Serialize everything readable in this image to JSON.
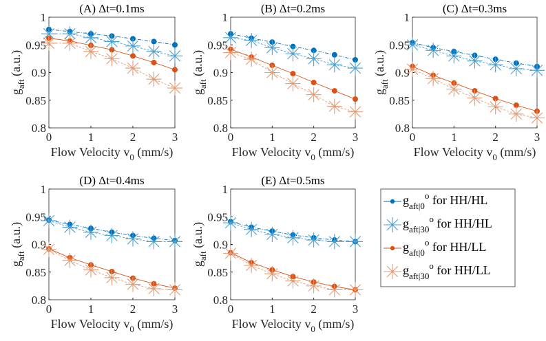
{
  "chart_data": {
    "type": "line",
    "layout": "2x3 grid of subplots, legend in bottom-right cell",
    "xlabel": "Flow Velocity v",
    "xlabel_sub": "0",
    "xlabel_unit": " (mm/s)",
    "ylabel": "g",
    "ylabel_sub": "aft",
    "ylabel_unit": " (a.u.)",
    "xlim": [
      0,
      3
    ],
    "ylim": [
      0.8,
      1
    ],
    "xticks": [
      "0",
      "1",
      "2",
      "3"
    ],
    "yticks": [
      "0.8",
      "0.85",
      "0.9",
      "0.95",
      "1"
    ],
    "x": [
      0,
      0.5,
      1,
      1.5,
      2,
      2.5,
      3
    ],
    "legend": [
      {
        "main": "g",
        "sub": "aft|0",
        "sup": "o",
        "rest": " for HH/HL",
        "color": "#0072BD",
        "marker": "dot"
      },
      {
        "main": "g",
        "sub": "aft|30",
        "sup": "o",
        "rest": " for HH/HL",
        "color": "#4A9FD0",
        "marker": "star"
      },
      {
        "main": "g",
        "sub": "aft|0",
        "sup": "o",
        "rest": " for HH/LL",
        "color": "#D95319",
        "marker": "dot"
      },
      {
        "main": "g",
        "sub": "aft|30",
        "sup": "o",
        "rest": " for HH/LL",
        "color": "#E39A74",
        "marker": "star"
      }
    ],
    "panels": [
      {
        "title": "(A) Δt=0.1ms",
        "series": [
          [
            0.978,
            0.974,
            0.97,
            0.966,
            0.961,
            0.956,
            0.95
          ],
          [
            0.97,
            0.97,
            0.963,
            0.956,
            0.948,
            0.938,
            0.93
          ],
          [
            0.962,
            0.957,
            0.949,
            0.941,
            0.93,
            0.918,
            0.905
          ],
          [
            0.953,
            0.953,
            0.938,
            0.925,
            0.908,
            0.888,
            0.872
          ]
        ]
      },
      {
        "title": "(B) Δt=0.2ms",
        "series": [
          [
            0.97,
            0.962,
            0.955,
            0.947,
            0.94,
            0.932,
            0.923
          ],
          [
            0.963,
            0.958,
            0.945,
            0.934,
            0.925,
            0.914,
            0.908
          ],
          [
            0.942,
            0.928,
            0.913,
            0.898,
            0.882,
            0.867,
            0.852
          ],
          [
            0.936,
            0.924,
            0.9,
            0.88,
            0.86,
            0.839,
            0.829
          ]
        ]
      },
      {
        "title": "(C) Δt=0.3ms",
        "series": [
          [
            0.954,
            0.945,
            0.938,
            0.931,
            0.924,
            0.917,
            0.911
          ],
          [
            0.95,
            0.94,
            0.93,
            0.921,
            0.914,
            0.907,
            0.904
          ],
          [
            0.911,
            0.895,
            0.881,
            0.867,
            0.853,
            0.841,
            0.83
          ],
          [
            0.906,
            0.889,
            0.87,
            0.854,
            0.838,
            0.825,
            0.818
          ]
        ]
      },
      {
        "title": "(D) Δt=0.4ms",
        "series": [
          [
            0.944,
            0.936,
            0.929,
            0.922,
            0.916,
            0.911,
            0.907
          ],
          [
            0.943,
            0.931,
            0.922,
            0.916,
            0.91,
            0.905,
            0.905
          ],
          [
            0.892,
            0.876,
            0.863,
            0.851,
            0.839,
            0.829,
            0.821
          ],
          [
            0.891,
            0.871,
            0.854,
            0.84,
            0.828,
            0.82,
            0.818
          ]
        ]
      },
      {
        "title": "(E) Δt=0.5ms",
        "series": [
          [
            0.941,
            0.931,
            0.924,
            0.917,
            0.912,
            0.908,
            0.905
          ],
          [
            0.939,
            0.927,
            0.918,
            0.912,
            0.908,
            0.905,
            0.905
          ],
          [
            0.885,
            0.867,
            0.854,
            0.842,
            0.832,
            0.824,
            0.818
          ],
          [
            0.884,
            0.862,
            0.847,
            0.834,
            0.825,
            0.818,
            0.818
          ]
        ]
      }
    ]
  }
}
